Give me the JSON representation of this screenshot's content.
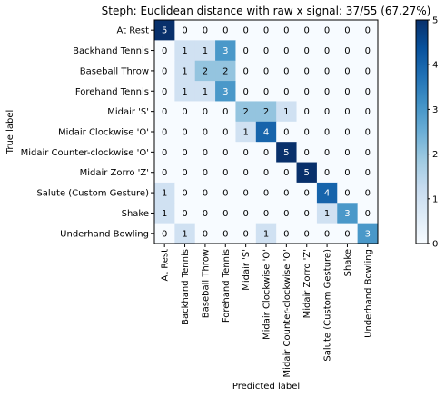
{
  "chart_data": {
    "type": "heatmap",
    "title": "Steph: Euclidean distance with raw x signal: 37/55 (67.27%)",
    "xlabel": "Predicted label",
    "ylabel": "True label",
    "labels": [
      "At Rest",
      "Backhand Tennis",
      "Baseball Throw",
      "Forehand Tennis",
      "Midair 'S'",
      "Midair Clockwise 'O'",
      "Midair Counter-clockwise 'O'",
      "Midair Zorro 'Z'",
      "Salute (Custom Gesture)",
      "Shake",
      "Underhand Bowling"
    ],
    "matrix": [
      [
        5,
        0,
        0,
        0,
        0,
        0,
        0,
        0,
        0,
        0,
        0
      ],
      [
        0,
        1,
        1,
        3,
        0,
        0,
        0,
        0,
        0,
        0,
        0
      ],
      [
        0,
        1,
        2,
        2,
        0,
        0,
        0,
        0,
        0,
        0,
        0
      ],
      [
        0,
        1,
        1,
        3,
        0,
        0,
        0,
        0,
        0,
        0,
        0
      ],
      [
        0,
        0,
        0,
        0,
        2,
        2,
        1,
        0,
        0,
        0,
        0
      ],
      [
        0,
        0,
        0,
        0,
        1,
        4,
        0,
        0,
        0,
        0,
        0
      ],
      [
        0,
        0,
        0,
        0,
        0,
        0,
        5,
        0,
        0,
        0,
        0
      ],
      [
        0,
        0,
        0,
        0,
        0,
        0,
        0,
        5,
        0,
        0,
        0
      ],
      [
        1,
        0,
        0,
        0,
        0,
        0,
        0,
        0,
        4,
        0,
        0
      ],
      [
        1,
        0,
        0,
        0,
        0,
        0,
        0,
        0,
        1,
        3,
        0
      ],
      [
        0,
        1,
        0,
        0,
        0,
        1,
        0,
        0,
        0,
        0,
        3
      ]
    ],
    "colorbar": {
      "min": 0,
      "max": 5,
      "ticks": [
        "0",
        "1",
        "2",
        "3",
        "4",
        "5"
      ]
    },
    "colormap": "Blues",
    "grid": false
  }
}
